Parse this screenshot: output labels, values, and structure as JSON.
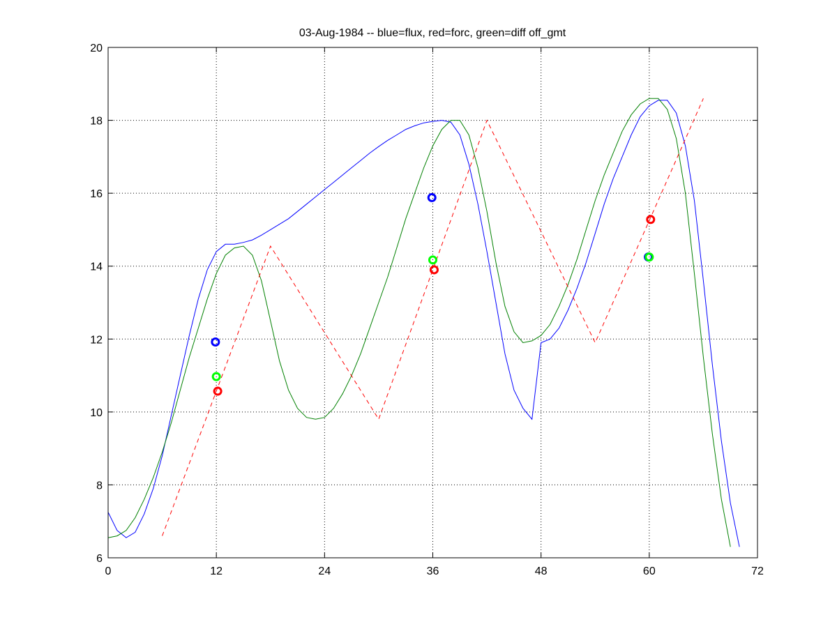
{
  "chart_data": {
    "type": "line",
    "title": "03-Aug-1984 -- blue=flux, red=forc, green=diff off_gmt",
    "xlabel": "",
    "ylabel": "",
    "xlim": [
      0,
      72
    ],
    "ylim": [
      6,
      20
    ],
    "xticks": [
      0,
      12,
      24,
      36,
      48,
      60,
      72
    ],
    "yticks": [
      6,
      8,
      10,
      12,
      14,
      16,
      18,
      20
    ],
    "grid": true,
    "series": [
      {
        "color": "#0000ff",
        "style": "solid",
        "points": [
          [
            0,
            7.25
          ],
          [
            1,
            6.75
          ],
          [
            2,
            6.55
          ],
          [
            3,
            6.7
          ],
          [
            4,
            7.2
          ],
          [
            5,
            7.9
          ],
          [
            6,
            8.8
          ],
          [
            7,
            9.9
          ],
          [
            8,
            11.0
          ],
          [
            9,
            12.1
          ],
          [
            10,
            13.1
          ],
          [
            11,
            13.9
          ],
          [
            12,
            14.4
          ],
          [
            13,
            14.6
          ],
          [
            14,
            14.6
          ],
          [
            15,
            14.65
          ],
          [
            16,
            14.72
          ],
          [
            17,
            14.85
          ],
          [
            18,
            15.0
          ],
          [
            19,
            15.15
          ],
          [
            20,
            15.3
          ],
          [
            21,
            15.5
          ],
          [
            22,
            15.7
          ],
          [
            23,
            15.9
          ],
          [
            24,
            16.1
          ],
          [
            25,
            16.3
          ],
          [
            26,
            16.5
          ],
          [
            27,
            16.7
          ],
          [
            28,
            16.9
          ],
          [
            29,
            17.1
          ],
          [
            30,
            17.28
          ],
          [
            31,
            17.45
          ],
          [
            32,
            17.6
          ],
          [
            33,
            17.75
          ],
          [
            34,
            17.85
          ],
          [
            35,
            17.93
          ],
          [
            36,
            17.97
          ],
          [
            37,
            18.0
          ],
          [
            38,
            17.95
          ],
          [
            39,
            17.6
          ],
          [
            40,
            16.8
          ],
          [
            41,
            15.7
          ],
          [
            42,
            14.4
          ],
          [
            43,
            13.0
          ],
          [
            44,
            11.6
          ],
          [
            45,
            10.6
          ],
          [
            46,
            10.1
          ],
          [
            47,
            9.8
          ],
          [
            48,
            11.9
          ],
          [
            49,
            12.0
          ],
          [
            50,
            12.3
          ],
          [
            51,
            12.8
          ],
          [
            52,
            13.4
          ],
          [
            53,
            14.1
          ],
          [
            54,
            14.9
          ],
          [
            55,
            15.7
          ],
          [
            56,
            16.4
          ],
          [
            57,
            17.0
          ],
          [
            58,
            17.6
          ],
          [
            59,
            18.1
          ],
          [
            60,
            18.4
          ],
          [
            61,
            18.55
          ],
          [
            62,
            18.55
          ],
          [
            63,
            18.2
          ],
          [
            64,
            17.3
          ],
          [
            65,
            15.8
          ],
          [
            66,
            13.6
          ],
          [
            67,
            11.3
          ],
          [
            68,
            9.2
          ],
          [
            69,
            7.5
          ],
          [
            70,
            6.3
          ]
        ]
      },
      {
        "color": "#008000",
        "style": "solid",
        "points": [
          [
            0,
            6.55
          ],
          [
            1,
            6.6
          ],
          [
            2,
            6.75
          ],
          [
            3,
            7.1
          ],
          [
            4,
            7.6
          ],
          [
            5,
            8.2
          ],
          [
            6,
            8.9
          ],
          [
            7,
            9.7
          ],
          [
            8,
            10.6
          ],
          [
            9,
            11.5
          ],
          [
            10,
            12.3
          ],
          [
            11,
            13.1
          ],
          [
            12,
            13.8
          ],
          [
            13,
            14.3
          ],
          [
            14,
            14.5
          ],
          [
            15,
            14.55
          ],
          [
            16,
            14.3
          ],
          [
            17,
            13.6
          ],
          [
            18,
            12.5
          ],
          [
            19,
            11.4
          ],
          [
            20,
            10.6
          ],
          [
            21,
            10.1
          ],
          [
            22,
            9.85
          ],
          [
            23,
            9.8
          ],
          [
            24,
            9.85
          ],
          [
            25,
            10.1
          ],
          [
            26,
            10.5
          ],
          [
            27,
            11.0
          ],
          [
            28,
            11.6
          ],
          [
            29,
            12.3
          ],
          [
            30,
            13.0
          ],
          [
            31,
            13.7
          ],
          [
            32,
            14.5
          ],
          [
            33,
            15.3
          ],
          [
            34,
            16.0
          ],
          [
            35,
            16.7
          ],
          [
            36,
            17.3
          ],
          [
            37,
            17.75
          ],
          [
            38,
            18.0
          ],
          [
            39,
            18.0
          ],
          [
            40,
            17.6
          ],
          [
            41,
            16.7
          ],
          [
            42,
            15.5
          ],
          [
            43,
            14.1
          ],
          [
            44,
            12.9
          ],
          [
            45,
            12.2
          ],
          [
            46,
            11.9
          ],
          [
            47,
            11.95
          ],
          [
            48,
            12.1
          ],
          [
            49,
            12.4
          ],
          [
            50,
            12.9
          ],
          [
            51,
            13.5
          ],
          [
            52,
            14.2
          ],
          [
            53,
            15.0
          ],
          [
            54,
            15.8
          ],
          [
            55,
            16.5
          ],
          [
            56,
            17.1
          ],
          [
            57,
            17.7
          ],
          [
            58,
            18.15
          ],
          [
            59,
            18.45
          ],
          [
            60,
            18.6
          ],
          [
            61,
            18.6
          ],
          [
            62,
            18.3
          ],
          [
            63,
            17.5
          ],
          [
            64,
            16.0
          ],
          [
            65,
            13.8
          ],
          [
            66,
            11.5
          ],
          [
            67,
            9.4
          ],
          [
            68,
            7.6
          ],
          [
            69,
            6.3
          ]
        ]
      },
      {
        "color": "#ff0000",
        "style": "dashed",
        "points": [
          [
            6,
            6.6
          ],
          [
            18,
            14.55
          ],
          [
            30,
            9.8
          ],
          [
            42,
            18.0
          ],
          [
            54,
            11.9
          ],
          [
            66,
            18.6
          ]
        ]
      }
    ],
    "markers": [
      {
        "x": 11.9,
        "y": 11.92,
        "color": "#0000ff"
      },
      {
        "x": 12.0,
        "y": 10.97,
        "color": "#00ff00"
      },
      {
        "x": 12.15,
        "y": 10.57,
        "color": "#ff0000"
      },
      {
        "x": 35.9,
        "y": 15.88,
        "color": "#0000ff"
      },
      {
        "x": 36.0,
        "y": 14.17,
        "color": "#00ff00"
      },
      {
        "x": 36.15,
        "y": 13.9,
        "color": "#ff0000"
      },
      {
        "x": 59.9,
        "y": 14.25,
        "color": "#0000ff"
      },
      {
        "x": 60.0,
        "y": 14.25,
        "color": "#00ff00"
      },
      {
        "x": 60.15,
        "y": 15.28,
        "color": "#ff0000"
      }
    ]
  }
}
